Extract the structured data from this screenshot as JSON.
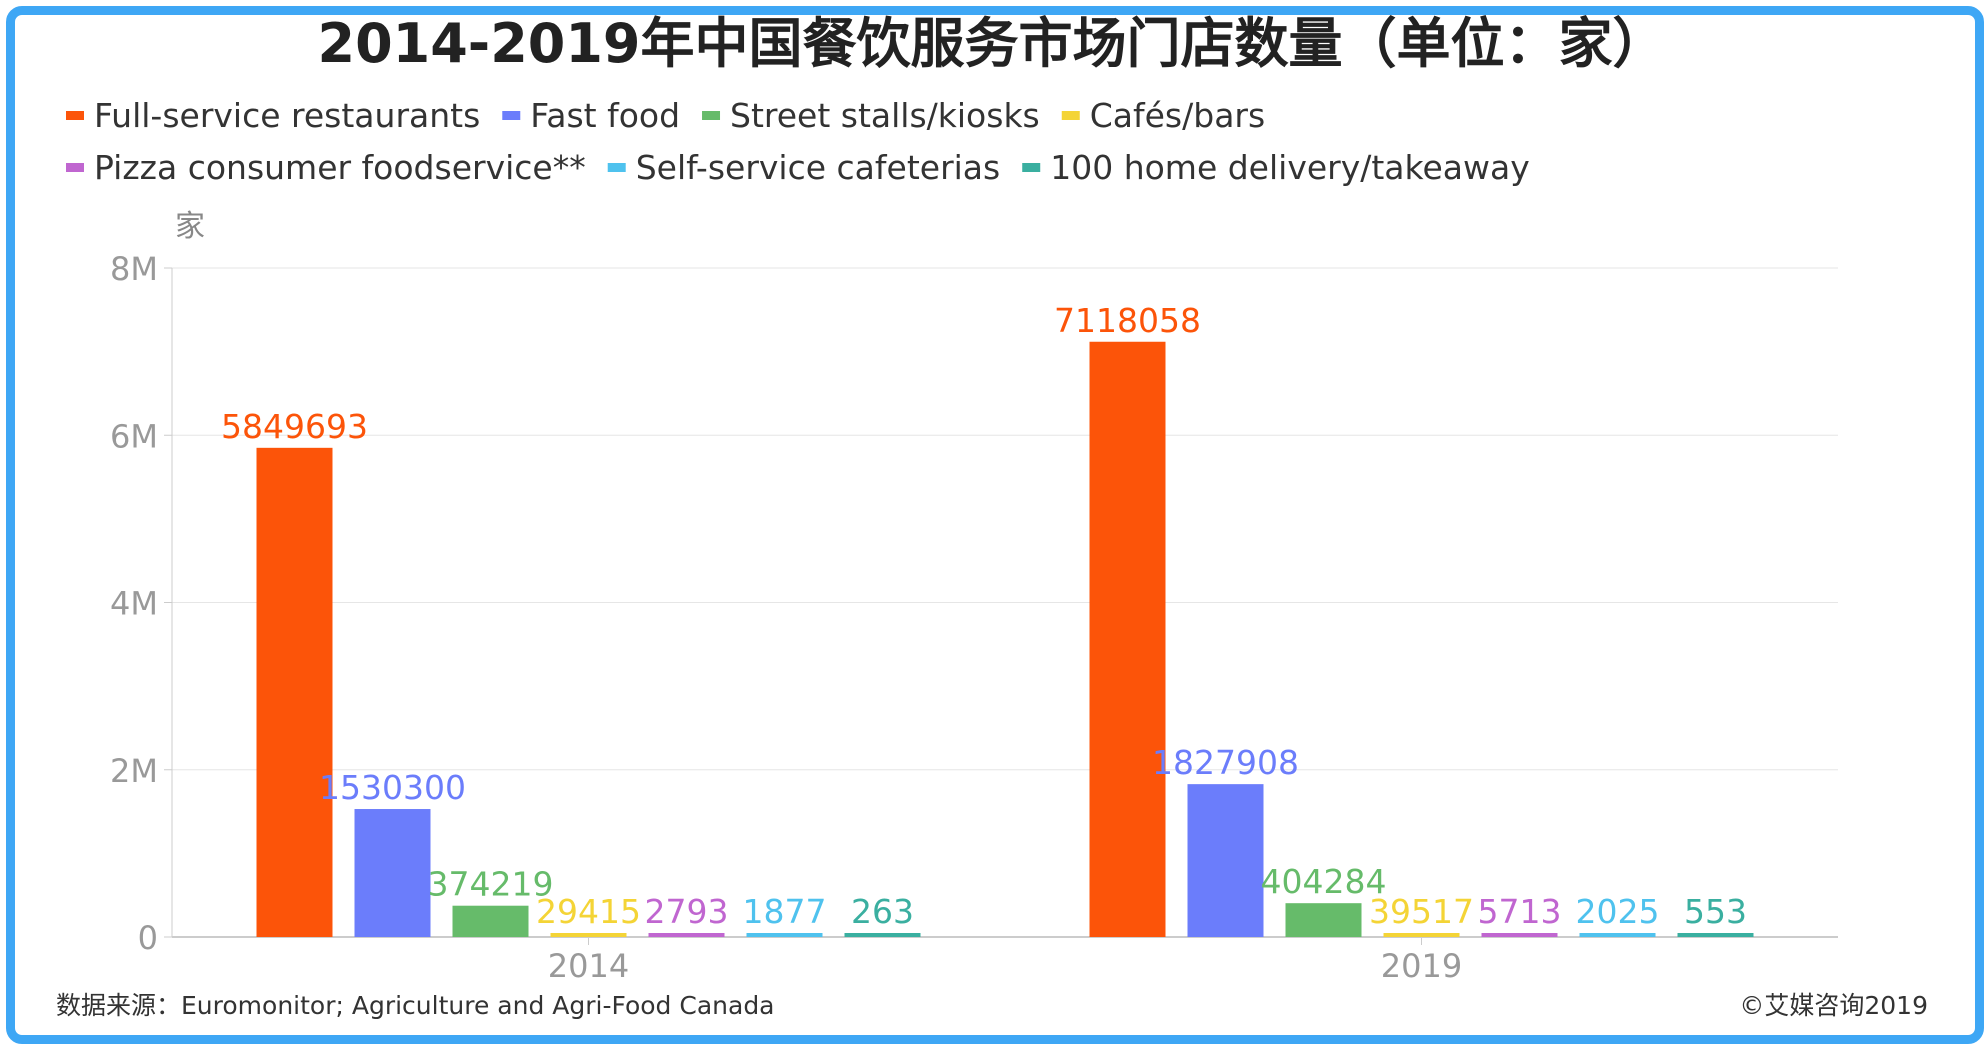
{
  "chart_data": {
    "type": "bar",
    "title": "2014-2019年中国餐饮服务市场门店数量（单位：家）",
    "ylabel": "家",
    "ylim": [
      0,
      8000000
    ],
    "yticks": [
      "0",
      "2M",
      "4M",
      "6M",
      "8M"
    ],
    "yticks_values": [
      0,
      2000000,
      4000000,
      6000000,
      8000000
    ],
    "grid": true,
    "legend_position": "top-left",
    "categories": [
      "2014",
      "2019"
    ],
    "series": [
      {
        "name": "Full-service restaurants",
        "color": "#fc5409",
        "values": [
          5849693,
          7118058
        ]
      },
      {
        "name": "Fast food",
        "color": "#6b7dfb",
        "values": [
          1530300,
          1827908
        ]
      },
      {
        "name": "Street stalls/kiosks",
        "color": "#66bb6a",
        "values": [
          374219,
          404284
        ]
      },
      {
        "name": "Cafés/bars",
        "color": "#f4d436",
        "values": [
          29415,
          39517
        ]
      },
      {
        "name": "Pizza consumer foodservice**",
        "color": "#c066d0",
        "values": [
          2793,
          5713
        ]
      },
      {
        "name": "Self-service cafeterias",
        "color": "#4fc2ee",
        "values": [
          1877,
          2025
        ]
      },
      {
        "name": "100 home delivery/takeaway",
        "color": "#3aafa0",
        "values": [
          263,
          553
        ]
      }
    ]
  },
  "footer": {
    "source": "数据来源：Euromonitor; Agriculture and Agri-Food Canada",
    "copyright": "©艾媒咨询2019"
  },
  "colors": {
    "frame_border": "#3ea7f5",
    "gridline": "#e6e6e6",
    "axis": "#cccccc"
  }
}
